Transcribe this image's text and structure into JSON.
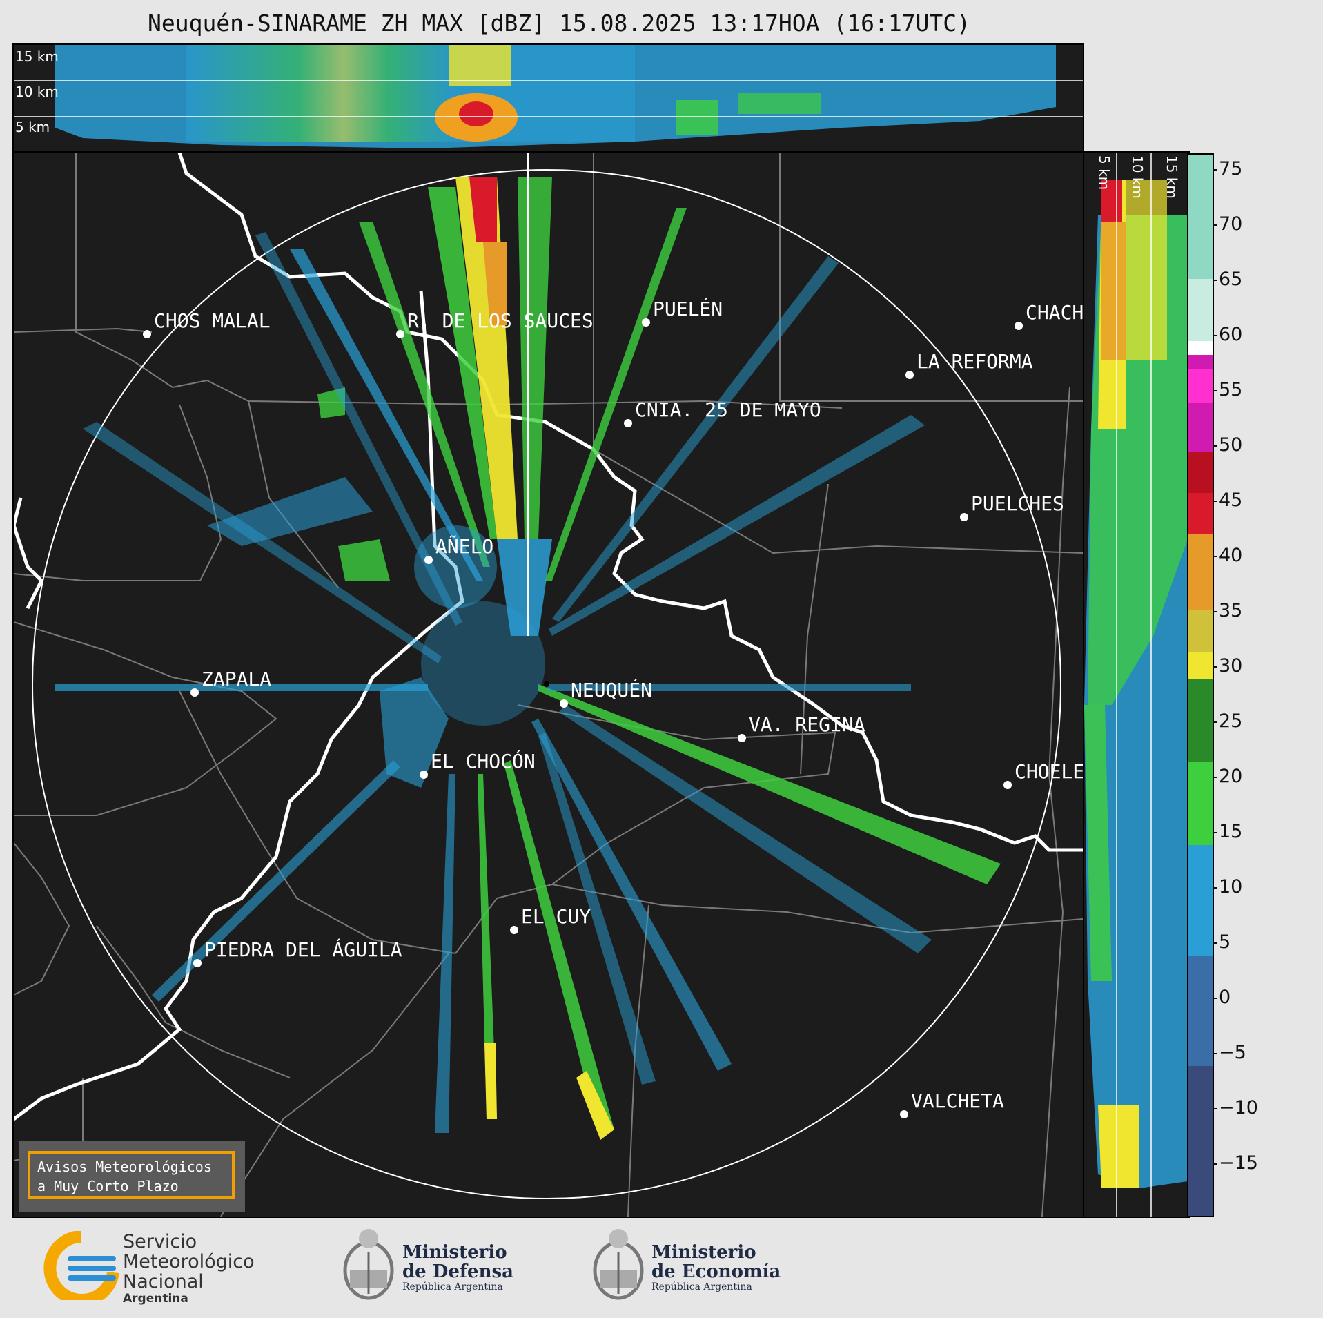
{
  "title": "Neuquén-SINARAME ZH MAX [dBZ] 15.08.2025 13:17HOA (16:17UTC)",
  "top_panel": {
    "height_labels": [
      "15 km",
      "10 km",
      "5 km"
    ]
  },
  "side_panel": {
    "height_labels": [
      "5 km",
      "10 km",
      "15 km"
    ]
  },
  "map": {
    "center_station": "NEUQUÉN",
    "places": [
      {
        "name": "CHOS MALAL"
      },
      {
        "name": "R. DE LOS SAUCES"
      },
      {
        "name": "PUELÉN"
      },
      {
        "name": "CHACH"
      },
      {
        "name": "LA REFORMA"
      },
      {
        "name": "CNIA. 25 DE MAYO"
      },
      {
        "name": "PUELCHES"
      },
      {
        "name": "AÑELO"
      },
      {
        "name": "ZAPALA"
      },
      {
        "name": "NEUQUÉN"
      },
      {
        "name": "VA. REGINA"
      },
      {
        "name": "EL CHOCÓN"
      },
      {
        "name": "CHOELE"
      },
      {
        "name": "EL CUY"
      },
      {
        "name": "PIEDRA DEL ÁGUILA"
      },
      {
        "name": "VALCHETA"
      }
    ]
  },
  "colorbar": {
    "unit": "dBZ",
    "ticks": [
      "75",
      "70",
      "65",
      "60",
      "55",
      "50",
      "45",
      "40",
      "35",
      "30",
      "25",
      "20",
      "15",
      "10",
      "5",
      "0",
      "−5",
      "−10",
      "−15"
    ],
    "range": [
      -20,
      77
    ],
    "colors": {
      "weak": "#3a4a7a",
      "light": "#2a9fd6",
      "moderate": "#3ecf3e",
      "heavy": "#f0e630",
      "intense": "#d81a2a",
      "extreme": "#ff2fd0",
      "hail": "#8fd9c4"
    }
  },
  "warning_box": {
    "line1": "Avisos Meteorológicos",
    "line2": "a Muy Corto Plazo"
  },
  "logos": {
    "smn": {
      "line1": "Servicio",
      "line2": "Meteorológico",
      "line3": "Nacional",
      "line4": "Argentina"
    },
    "defensa": {
      "line1": "Ministerio",
      "line2": "de Defensa",
      "line3": "República Argentina"
    },
    "economia": {
      "line1": "Ministerio",
      "line2": "de Economía",
      "line3": "República Argentina"
    }
  }
}
